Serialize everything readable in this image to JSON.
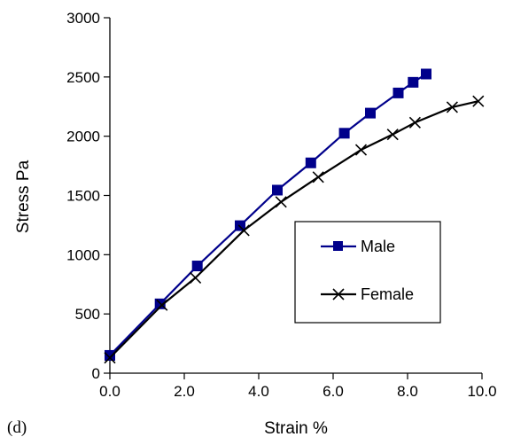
{
  "panel_label": "(d)",
  "chart_data": {
    "type": "line",
    "title": "",
    "xlabel": "Strain %",
    "ylabel": "Stress Pa",
    "xlim": [
      0,
      10
    ],
    "ylim": [
      0,
      3000
    ],
    "x_ticks": [
      "0.0",
      "2.0",
      "4.0",
      "6.0",
      "8.0",
      "10.0"
    ],
    "y_ticks": [
      "0",
      "500",
      "1000",
      "1500",
      "2000",
      "2500",
      "3000"
    ],
    "grid": false,
    "legend_position": "right",
    "series": [
      {
        "name": "Male",
        "color": "#00008b",
        "marker": "square",
        "x": [
          0.0,
          1.35,
          2.35,
          3.5,
          4.5,
          5.4,
          6.3,
          7.0,
          7.75,
          8.15,
          8.5
        ],
        "y": [
          150,
          585,
          905,
          1245,
          1545,
          1775,
          2025,
          2195,
          2365,
          2455,
          2525
        ]
      },
      {
        "name": "Female",
        "color": "#000000",
        "marker": "x",
        "x": [
          0.0,
          1.4,
          2.3,
          3.6,
          4.6,
          5.6,
          6.75,
          7.6,
          8.2,
          9.2,
          9.9
        ],
        "y": [
          130,
          575,
          805,
          1205,
          1445,
          1655,
          1885,
          2015,
          2115,
          2245,
          2295
        ]
      }
    ]
  }
}
